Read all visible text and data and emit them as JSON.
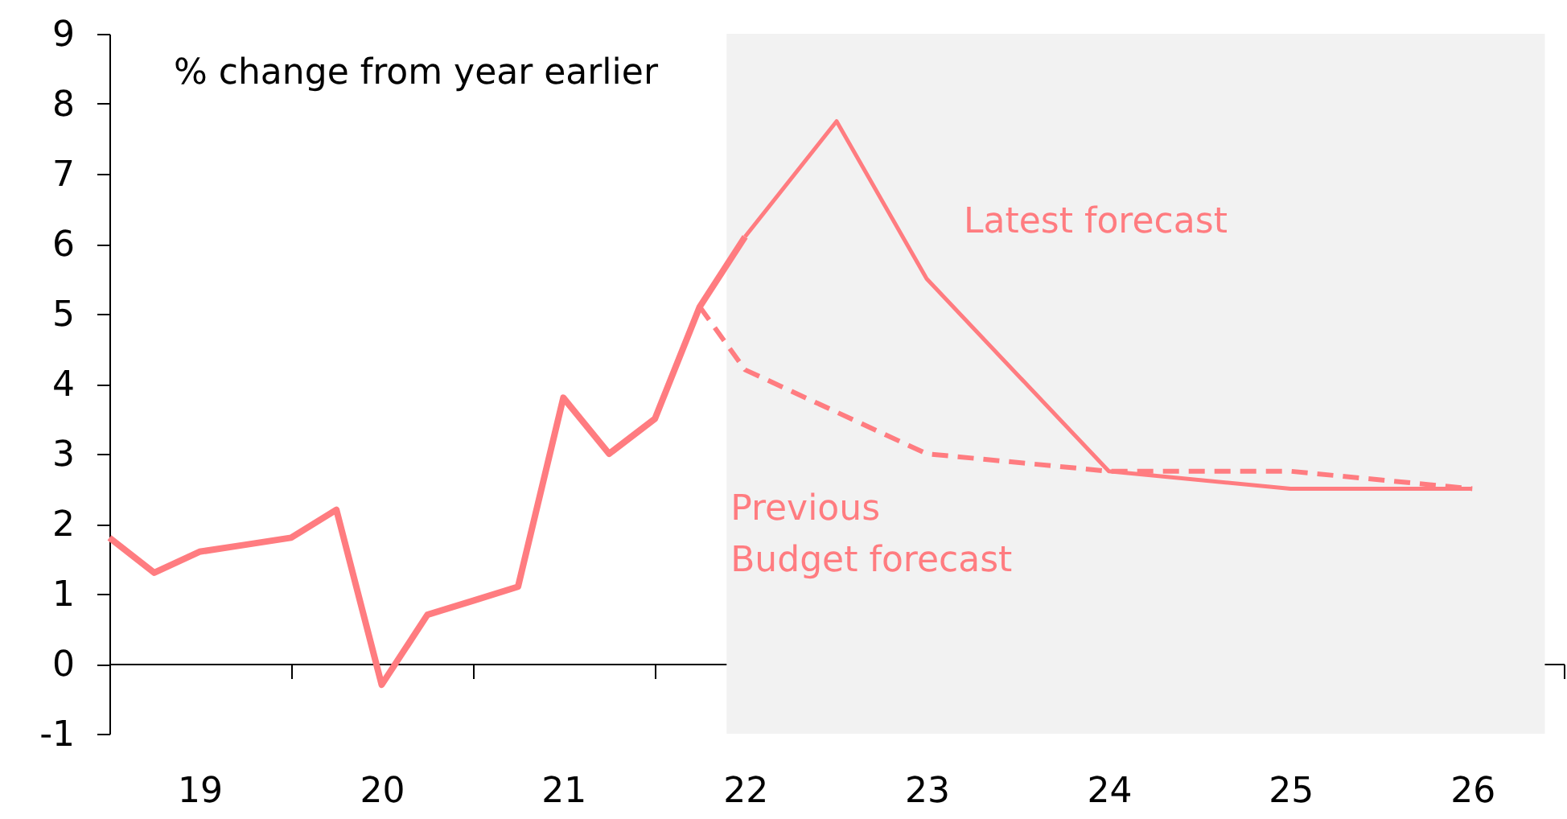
{
  "chart_data": {
    "type": "line",
    "x": [
      "2019-01-01",
      "2019-04-01",
      "2019-07-01",
      "2019-10-01",
      "2020-01-01",
      "2020-04-01",
      "2020-07-01",
      "2020-10-01",
      "2021-01-01",
      "2021-04-01",
      "2021-07-01",
      "2021-10-01",
      "2022-01-01",
      "2022-04-01",
      "2022-07-01"
    ],
    "series": [
      {
        "color": "#ff7c80",
        "values": [
          1.8,
          1.3,
          1.6,
          1.7,
          1.8,
          2.2,
          -0.3,
          0.7,
          0.9,
          1.1,
          3.8,
          3.0,
          3.5,
          5.1,
          6.1
        ]
      },
      {
        "name": "Latest forecast",
        "color": "#ff7c80",
        "x": [
          "2022-07-01",
          "2023-01-01",
          "2023-07-01",
          "2024-07-01",
          "2025-07-01",
          "2026-07-01"
        ],
        "values": [
          6.1,
          7.75,
          5.5,
          2.75,
          2.5,
          2.5
        ]
      },
      {
        "name": "Previous\nBudget forecast",
        "color": "#ff7c80",
        "line_style": "dashed",
        "x": [
          "2022-04-01",
          "2022-07-01",
          "2023-07-01",
          "2024-07-01",
          "2025-07-01",
          "2026-07-01"
        ],
        "values": [
          5.1,
          4.2,
          3.0,
          2.75,
          2.75,
          2.5
        ]
      }
    ],
    "xlim": [
      "2019-01-01",
      "2027-01-01"
    ],
    "xticks": [
      {
        "value": "2019-07-01",
        "label": "19"
      },
      {
        "value": "2020-01-01",
        "label": null
      },
      {
        "value": "2020-07-01",
        "label": "20"
      },
      {
        "value": "2021-01-01",
        "label": null
      },
      {
        "value": "2021-07-01",
        "label": "21"
      },
      {
        "value": "2022-01-01",
        "label": null
      },
      {
        "value": "2022-07-01",
        "label": "22"
      },
      {
        "value": "2023-01-01",
        "label": null
      },
      {
        "value": "2023-07-01",
        "label": "23"
      },
      {
        "value": "2024-01-01",
        "label": null
      },
      {
        "value": "2024-07-01",
        "label": "24"
      },
      {
        "value": "2025-01-01",
        "label": null
      },
      {
        "value": "2025-07-01",
        "label": "25"
      },
      {
        "value": "2026-01-01",
        "label": null
      },
      {
        "value": "2026-07-01",
        "label": "26"
      },
      {
        "value": "2027-01-01",
        "label": null
      }
    ],
    "ylim": [
      -1,
      9
    ],
    "yticks": [
      -1,
      0,
      1,
      2,
      3,
      4,
      5,
      6,
      7,
      8,
      9
    ],
    "bands": [
      {
        "axis": "x",
        "from": "2022-05-25",
        "to": "2026-11-24",
        "color": "#f2f2f2"
      }
    ],
    "annotations": [
      "% change from year earlier"
    ]
  }
}
